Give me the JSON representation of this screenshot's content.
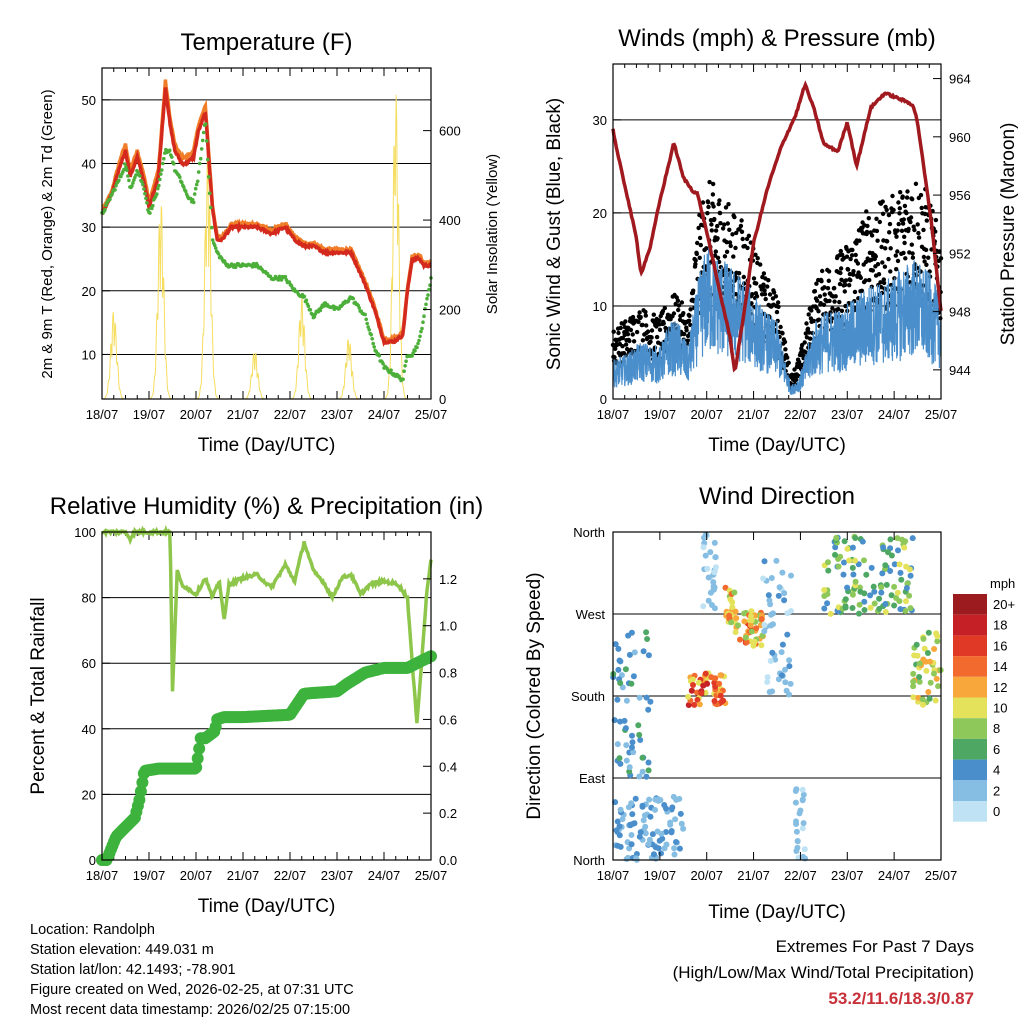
{
  "colors": {
    "temp_2m": "#d42a1e",
    "temp_9m": "#f07d28",
    "dewpoint": "#4caf3a",
    "solar": "#f5dd60",
    "wind": "#4a8fcc",
    "gust": "#000000",
    "pressure": "#a0191e",
    "rh": "#8dc64a",
    "precip": "#3db33d",
    "extremes": "#c8303a"
  },
  "x_ticks": [
    "18/07",
    "19/07",
    "20/07",
    "21/07",
    "22/07",
    "23/07",
    "24/07",
    "25/07"
  ],
  "chart_data": [
    {
      "id": "temperature",
      "type": "line",
      "title": "Temperature (F)",
      "xlabel": "Time (Day/UTC)",
      "ylabel": "2m & 9m T (Red, Orange) & 2m Td (Green)",
      "y2label": "Solar Insolation (Yellow)",
      "ylim": [
        3,
        55
      ],
      "y_ticks": [
        10,
        20,
        30,
        40,
        50
      ],
      "y2lim": [
        0,
        740
      ],
      "y2_ticks": [
        0,
        200,
        400,
        600
      ],
      "x": [
        0,
        0.2,
        0.4,
        0.5,
        0.6,
        0.75,
        0.9,
        1.0,
        1.2,
        1.35,
        1.45,
        1.55,
        1.7,
        1.8,
        1.95,
        2.05,
        2.2,
        2.35,
        2.45,
        2.55,
        2.65,
        2.75,
        3.0,
        3.3,
        3.6,
        3.9,
        4.1,
        4.3,
        4.5,
        4.75,
        5.0,
        5.3,
        5.6,
        5.8,
        6.0,
        6.2,
        6.4,
        6.5,
        6.6,
        6.75,
        6.85,
        7.0
      ],
      "series": [
        {
          "name": "2m T",
          "values": [
            32,
            35,
            40,
            42,
            38,
            41,
            37,
            33,
            38,
            52,
            46,
            42,
            40,
            40,
            41,
            45,
            48,
            33,
            28,
            28,
            29,
            30,
            30,
            30,
            29,
            30,
            28,
            27,
            27,
            26,
            26,
            26,
            21,
            17,
            12,
            12,
            13,
            20,
            25,
            25,
            24,
            24
          ]
        },
        {
          "name": "9m T",
          "values": [
            32.5,
            35.5,
            41,
            43,
            39,
            42,
            38,
            34,
            39,
            53,
            47,
            43,
            41,
            41,
            42,
            46,
            49,
            33.5,
            28.5,
            28.5,
            29.5,
            30.5,
            30.5,
            30.5,
            29.5,
            30.5,
            28.5,
            27.5,
            27.5,
            26.5,
            26.5,
            26.5,
            21.5,
            17.5,
            12.5,
            12.5,
            13.5,
            20.5,
            25.5,
            25.5,
            24.5,
            24.5
          ]
        },
        {
          "name": "2m Td",
          "values": [
            32,
            35,
            38,
            40,
            36,
            39,
            36,
            32,
            36,
            42,
            42,
            39,
            37,
            35,
            34,
            38,
            47,
            28,
            26,
            25,
            24,
            24,
            24,
            24,
            22,
            22,
            20,
            19,
            16,
            18,
            17,
            19,
            16,
            11,
            8,
            7,
            6,
            10,
            10,
            12,
            16,
            22
          ]
        }
      ],
      "solar": {
        "days": [
          0.25,
          1.25,
          2.25,
          3.25,
          4.25,
          5.25,
          6.25
        ],
        "peaks": [
          200,
          450,
          550,
          110,
          230,
          140,
          690
        ]
      }
    },
    {
      "id": "winds",
      "type": "line",
      "title": "Winds (mph) & Pressure (mb)",
      "xlabel": "Time (Day/UTC)",
      "ylabel": "Sonic Wind & Gust (Blue, Black)",
      "y2label": "Station Pressure (Maroon)",
      "ylim": [
        0,
        36
      ],
      "y_ticks": [
        0,
        10,
        20,
        30
      ],
      "y2lim": [
        942.0,
        965.0
      ],
      "y2_ticks": [
        944,
        948,
        952,
        956,
        960,
        964
      ],
      "wind_mean": {
        "x": [
          0,
          0.3,
          0.6,
          1.0,
          1.2,
          1.4,
          1.6,
          1.8,
          2.0,
          2.3,
          2.6,
          2.9,
          3.2,
          3.5,
          3.8,
          4.0,
          4.3,
          4.6,
          4.9,
          5.2,
          5.5,
          5.8,
          6.1,
          6.4,
          6.7,
          7.0
        ],
        "values": [
          3,
          3.5,
          4.5,
          4,
          6,
          6,
          4,
          9,
          12,
          11,
          10,
          9,
          7,
          6,
          1,
          2,
          6,
          7,
          7,
          8,
          9,
          9,
          10,
          11,
          10,
          8
        ]
      },
      "gust": {
        "x": [
          0,
          0.3,
          0.6,
          1.0,
          1.2,
          1.4,
          1.6,
          1.8,
          2.0,
          2.3,
          2.6,
          2.9,
          3.2,
          3.5,
          3.8,
          4.0,
          4.3,
          4.6,
          4.9,
          5.2,
          5.5,
          5.8,
          6.1,
          6.4,
          6.7,
          7.0
        ],
        "values": [
          6,
          7,
          8,
          7,
          9,
          9,
          7,
          15,
          19,
          18,
          16,
          15,
          11,
          9,
          2,
          4,
          10,
          12,
          13,
          15,
          17,
          17,
          18,
          20,
          18,
          14
        ]
      },
      "pressure": {
        "x": [
          0,
          0.1,
          0.3,
          0.5,
          0.6,
          0.8,
          1.0,
          1.3,
          1.5,
          1.7,
          1.8,
          2.0,
          2.2,
          2.5,
          2.6,
          2.8,
          3.0,
          3.3,
          3.6,
          3.9,
          4.1,
          4.3,
          4.5,
          4.8,
          5.0,
          5.2,
          5.5,
          5.8,
          6.2,
          6.4,
          6.5,
          6.8,
          7.0
        ],
        "values": [
          960.5,
          958.8,
          956.0,
          953.0,
          950.6,
          952.5,
          955.6,
          959.6,
          957.2,
          956.3,
          956.1,
          953.5,
          950.5,
          946.2,
          943.8,
          948.0,
          952.7,
          956.5,
          959.4,
          961.5,
          963.6,
          961.8,
          959.5,
          959.0,
          961.0,
          958.0,
          962.0,
          963.0,
          962.5,
          962.2,
          961.0,
          954.0,
          948.0
        ]
      }
    },
    {
      "id": "rh_precip",
      "type": "line",
      "title": "Relative Humidity (%) & Precipitation (in)",
      "xlabel": "Time (Day/UTC)",
      "ylabel": "Percent & Total Rainfall",
      "ylim": [
        0,
        100
      ],
      "y_ticks": [
        0,
        20,
        40,
        60,
        80,
        100
      ],
      "y2lim": [
        0,
        1.4
      ],
      "y2_ticks": [
        "0.0",
        "0.2",
        "0.4",
        "0.6",
        "0.8",
        "1.0",
        "1.2"
      ],
      "rh": {
        "x": [
          0,
          0.5,
          0.6,
          0.7,
          1.0,
          1.45,
          1.5,
          1.55,
          1.6,
          1.7,
          2.0,
          2.2,
          2.35,
          2.5,
          2.6,
          2.7,
          3.0,
          3.3,
          3.6,
          3.9,
          4.1,
          4.3,
          4.5,
          4.7,
          4.9,
          5.1,
          5.3,
          5.5,
          5.7,
          6.0,
          6.3,
          6.5,
          6.6,
          6.7,
          6.8,
          6.9,
          7.0
        ],
        "values": [
          100,
          100,
          98,
          100,
          100,
          100,
          51,
          70,
          88,
          84,
          81,
          86,
          80,
          85,
          73,
          84,
          86,
          87,
          83,
          90,
          85,
          97,
          88,
          85,
          80,
          86,
          87,
          81,
          84,
          85,
          84,
          80,
          60,
          42,
          60,
          80,
          92
        ]
      },
      "precip": {
        "x": [
          0,
          0.1,
          0.2,
          0.3,
          0.5,
          0.7,
          0.75,
          0.8,
          0.85,
          0.9,
          1.2,
          1.6,
          2.0,
          2.05,
          2.1,
          2.2,
          2.4,
          2.45,
          2.6,
          3.0,
          4.0,
          4.3,
          5.0,
          5.2,
          5.6,
          6.0,
          6.5,
          7.0
        ],
        "values": [
          0,
          0,
          0.05,
          0.1,
          0.14,
          0.18,
          0.22,
          0.26,
          0.32,
          0.38,
          0.39,
          0.39,
          0.39,
          0.45,
          0.52,
          0.52,
          0.55,
          0.6,
          0.61,
          0.61,
          0.62,
          0.71,
          0.72,
          0.75,
          0.8,
          0.82,
          0.82,
          0.87
        ]
      }
    },
    {
      "id": "wind_direction",
      "type": "scatter",
      "title": "Wind Direction",
      "xlabel": "Time (Day/UTC)",
      "ylabel": "Direction (Colored By Speed)",
      "y_ticks": [
        "North",
        "East",
        "South",
        "West",
        "North"
      ],
      "legend_title": "mph",
      "legend_labels": [
        "20+",
        "18",
        "16",
        "14",
        "12",
        "10",
        "8",
        "6",
        "4",
        "2",
        "0"
      ],
      "legend_colors": [
        "#9b1b1e",
        "#c42026",
        "#e03a27",
        "#f26a2d",
        "#f8a73a",
        "#e4e25b",
        "#8fc85a",
        "#4ea864",
        "#4a8fcc",
        "#86bde3",
        "#bfe3f5"
      ],
      "segments": [
        {
          "x": [
            0,
            0.8
          ],
          "dir": [
            90,
            250
          ],
          "spd": [
            2,
            6
          ]
        },
        {
          "x": [
            0,
            1.5
          ],
          "dir": [
            0,
            70
          ],
          "spd": [
            1,
            5
          ]
        },
        {
          "x": [
            1.6,
            2.4
          ],
          "dir": [
            170,
            205
          ],
          "spd": [
            9,
            18
          ]
        },
        {
          "x": [
            2.4,
            2.6
          ],
          "dir": [
            260,
            300
          ],
          "spd": [
            8,
            15
          ]
        },
        {
          "x": [
            2.6,
            3.2
          ],
          "dir": [
            235,
            275
          ],
          "spd": [
            7,
            16
          ]
        },
        {
          "x": [
            3.2,
            3.8
          ],
          "dir": [
            180,
            330
          ],
          "spd": [
            0,
            4
          ]
        },
        {
          "x": [
            3.9,
            4.1
          ],
          "dir": [
            0,
            80
          ],
          "spd": [
            0,
            3
          ]
        },
        {
          "x": [
            4.5,
            6.4
          ],
          "dir": [
            270,
            355
          ],
          "spd": [
            3,
            10
          ]
        },
        {
          "x": [
            6.4,
            7.0
          ],
          "dir": [
            170,
            250
          ],
          "spd": [
            6,
            13
          ]
        },
        {
          "x": [
            1.9,
            2.2
          ],
          "dir": [
            270,
            360
          ],
          "spd": [
            0,
            3
          ]
        }
      ]
    }
  ],
  "footer": {
    "location": "Location: Randolph",
    "elevation": "Station elevation: 449.031 m",
    "latlon": "Station lat/lon: 42.1493; -78.901",
    "created": "Figure created on Wed, 2026-02-25, at 07:31 UTC",
    "recent": "Most recent data timestamp: 2026/02/25 07:15:00",
    "extremes_title": "Extremes For Past 7 Days",
    "extremes_sub": "(High/Low/Max Wind/Total Precipitation)",
    "extremes_values": "53.2/11.6/18.3/0.87"
  }
}
